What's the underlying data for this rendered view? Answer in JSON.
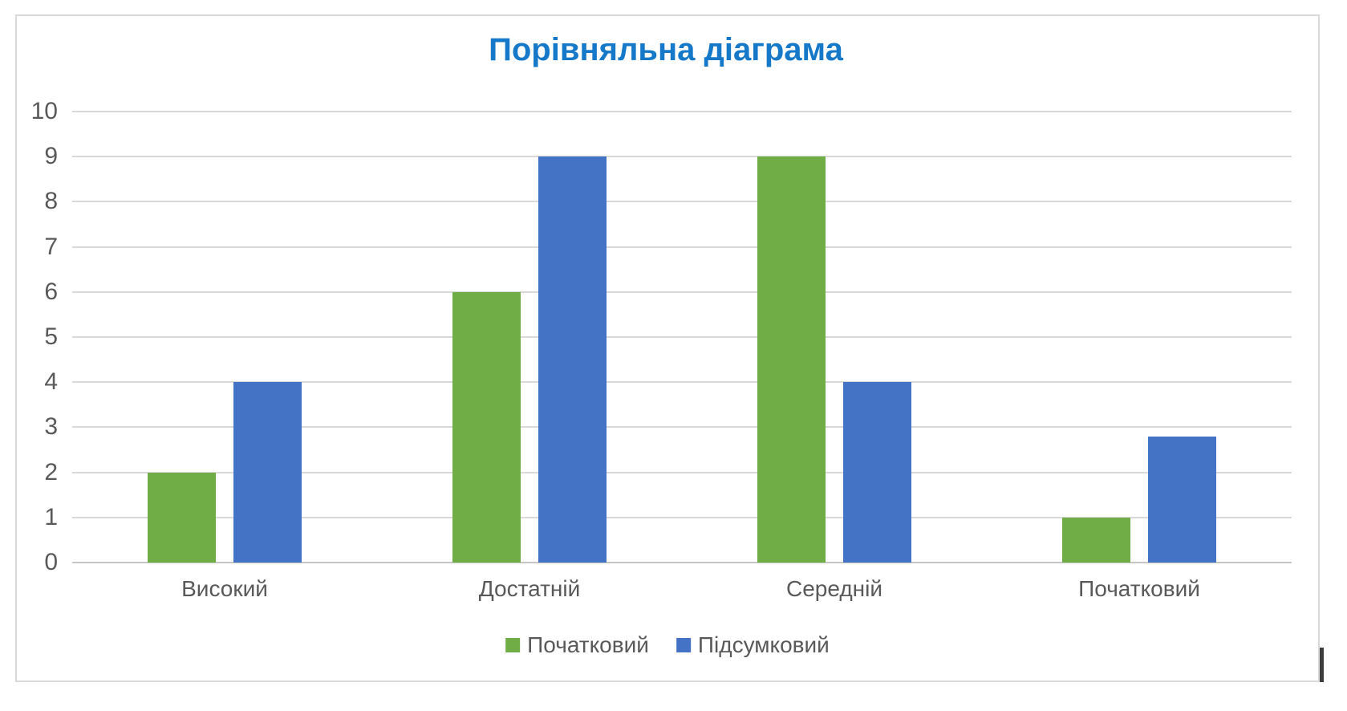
{
  "chart_data": {
    "type": "bar",
    "title": "Порівняльна діаграма",
    "categories": [
      "Високий",
      "Достатній",
      "Середній",
      "Початковий"
    ],
    "series": [
      {
        "name": "Початковий",
        "color": "#70ad47",
        "values": [
          2,
          6,
          9,
          1
        ]
      },
      {
        "name": "Підсумковий",
        "color": "#4472c4",
        "values": [
          4,
          9,
          4,
          2.8
        ]
      }
    ],
    "xlabel": "",
    "ylabel": "",
    "ylim": [
      0,
      10
    ],
    "yticks": [
      0,
      1,
      2,
      3,
      4,
      5,
      6,
      7,
      8,
      9,
      10
    ],
    "grid": true,
    "legend_position": "bottom"
  },
  "colors": {
    "title": "#1578c8",
    "axis_text": "#595959",
    "gridline": "#d9d9d9",
    "axis_line": "#c6c6c6",
    "frame_border": "#d9d9d9",
    "background": "#ffffff",
    "cursor_artifact": "#3d3d3d"
  }
}
